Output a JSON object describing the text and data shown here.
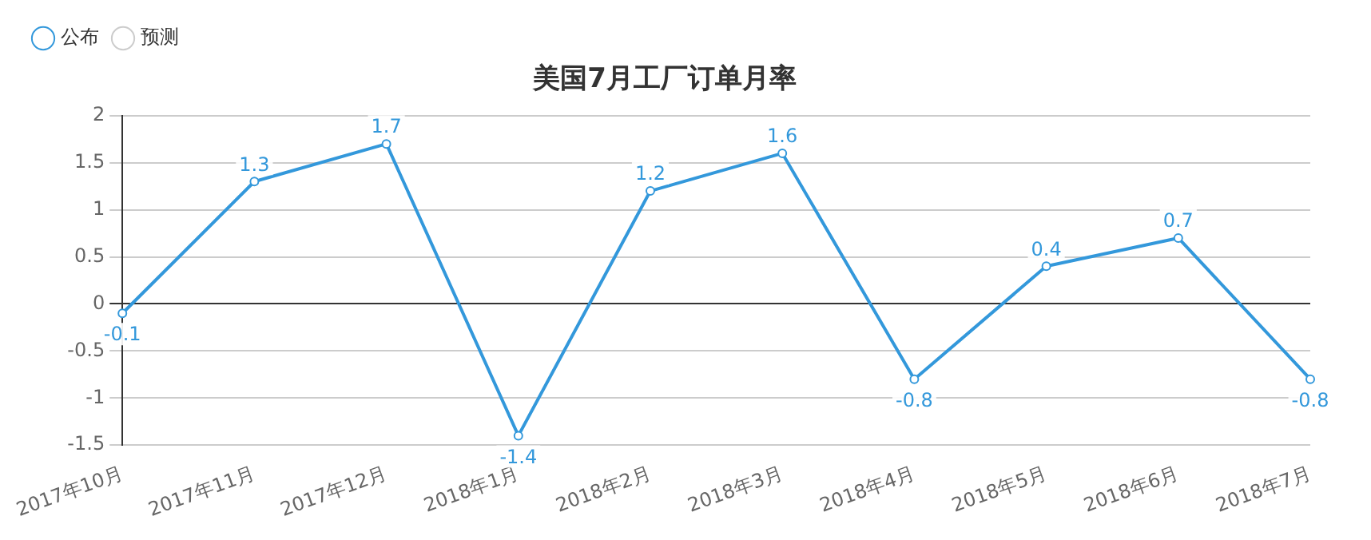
{
  "chart_data": {
    "type": "line",
    "title": "美国7月工厂订单月率",
    "categories": [
      "2017年10月",
      "2017年11月",
      "2017年12月",
      "2018年1月",
      "2018年2月",
      "2018年3月",
      "2018年4月",
      "2018年5月",
      "2018年6月",
      "2018年7月"
    ],
    "series": [
      {
        "name": "公布",
        "color": "#3398db",
        "values": [
          -0.1,
          1.3,
          1.7,
          -1.4,
          1.2,
          1.6,
          -0.8,
          0.4,
          0.7,
          -0.8
        ]
      },
      {
        "name": "预测",
        "color": "#cccccc",
        "values": [
          null,
          null,
          null,
          null,
          null,
          null,
          null,
          null,
          null,
          null
        ]
      }
    ],
    "ylim": [
      -1.5,
      2
    ],
    "yticks": [
      -1.5,
      -1,
      -0.5,
      0,
      0.5,
      1,
      1.5,
      2
    ],
    "grid": "y",
    "legend": "top left",
    "marker": "circle",
    "line_style": "solid",
    "data_labels": true
  }
}
